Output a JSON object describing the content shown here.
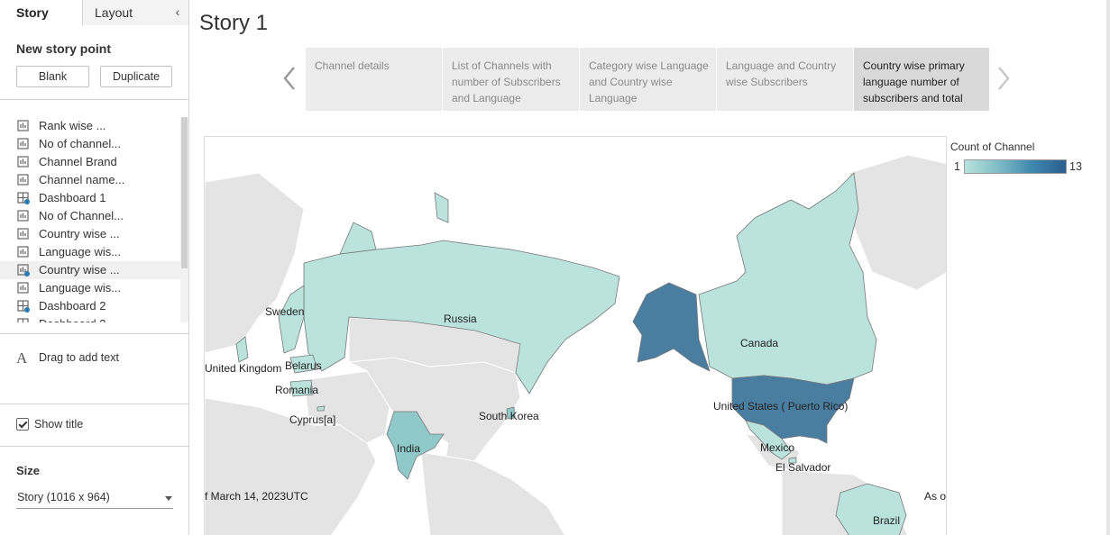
{
  "left_panel": {
    "tabs": {
      "story": "Story",
      "layout": "Layout"
    },
    "new_story_point": {
      "title": "New story point",
      "blank_label": "Blank",
      "duplicate_label": "Duplicate"
    },
    "sheets": [
      {
        "label": "Rank wise ...",
        "icon": "worksheet-icon"
      },
      {
        "label": "No of channel...",
        "icon": "worksheet-icon"
      },
      {
        "label": "Channel Brand",
        "icon": "worksheet-icon"
      },
      {
        "label": "Channel name...",
        "icon": "worksheet-icon"
      },
      {
        "label": "Dashboard 1",
        "icon": "dashboard-icon"
      },
      {
        "label": "No of Channel...",
        "icon": "worksheet-icon"
      },
      {
        "label": "Country wise ...",
        "icon": "worksheet-icon"
      },
      {
        "label": "Language wis...",
        "icon": "worksheet-icon"
      },
      {
        "label": "Country wise ...",
        "icon": "worksheet-icon",
        "selected": true
      },
      {
        "label": "Language wis...",
        "icon": "worksheet-icon"
      },
      {
        "label": "Dashboard 2",
        "icon": "dashboard-icon"
      },
      {
        "label": "Dashboard 3",
        "icon": "dashboard-icon"
      }
    ],
    "drag_text": "Drag to add text",
    "show_title": {
      "label": "Show title",
      "checked": true
    },
    "size": {
      "title": "Size",
      "value": "Story (1016 x 964)"
    }
  },
  "story": {
    "title": "Story 1",
    "story_points": [
      {
        "label": "Channel details"
      },
      {
        "label": "List of Channels with number of Subscribers and Language"
      },
      {
        "label": "Category wise Language and Country wise Language"
      },
      {
        "label": "Language and Country wise Subscribers"
      },
      {
        "label": "Country wise primary language number of subscribers and total",
        "active": true
      }
    ]
  },
  "map": {
    "labels": {
      "sweden": "Sweden",
      "russia": "Russia",
      "canada": "Canada",
      "united_kingdom": "United Kingdom",
      "belarus": "Belarus",
      "romania": "Romania",
      "cyprus": "Cyprus[a]",
      "south_korea": "South Korea",
      "india": "India",
      "united_states": "United States ( Puerto Rico)",
      "mexico": "Mexico",
      "el_salvador": "El Salvador",
      "brazil": "Brazil",
      "date_note": "f March 14, 2023UTC",
      "as_of": "As o"
    },
    "colors": {
      "low": "#b9e3dc",
      "mid": "#8fc9c9",
      "high": "#4a7ea0",
      "no_data": "#e4e4e4",
      "border": "#777777"
    }
  },
  "legend": {
    "title": "Count of Channel",
    "min": "1",
    "max": "13",
    "color_low": "#b9e3dc",
    "color_high": "#2a5e8e"
  }
}
